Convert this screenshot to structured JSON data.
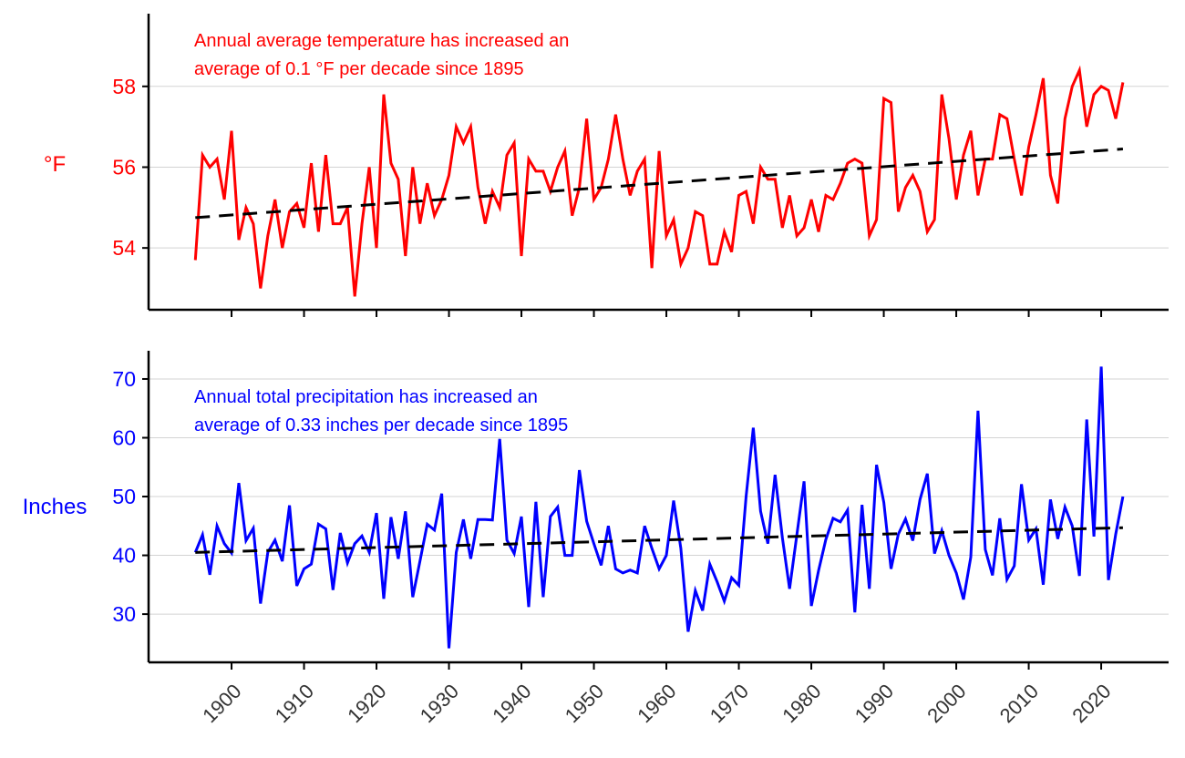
{
  "chart_data": [
    {
      "type": "line",
      "ylabel": "°F",
      "annotation": [
        "Annual average temperature has increased an",
        "average of 0.1 °F per decade since 1895"
      ],
      "color": "#ff0000",
      "trend_color": "#000000",
      "grid": true,
      "ylim": [
        52.47,
        59.8
      ],
      "yticks": [
        54,
        56,
        58
      ],
      "x_start": 1895,
      "values": [
        53.7,
        56.3,
        56.0,
        56.2,
        55.2,
        56.9,
        54.2,
        55.0,
        54.6,
        53.0,
        54.3,
        55.2,
        54.0,
        54.9,
        55.1,
        54.5,
        56.1,
        54.4,
        56.3,
        54.6,
        54.6,
        55.0,
        52.8,
        54.6,
        56.0,
        54.0,
        57.8,
        56.1,
        55.7,
        53.8,
        56.0,
        54.6,
        55.6,
        54.8,
        55.2,
        55.8,
        57.0,
        56.6,
        57.0,
        55.5,
        54.6,
        55.4,
        55.0,
        56.3,
        56.6,
        53.8,
        56.2,
        55.9,
        55.9,
        55.4,
        56.0,
        56.4,
        54.8,
        55.5,
        57.2,
        55.2,
        55.5,
        56.2,
        57.3,
        56.2,
        55.3,
        55.9,
        56.2,
        53.5,
        56.4,
        54.3,
        54.7,
        53.6,
        54.0,
        54.9,
        54.8,
        53.6,
        53.6,
        54.4,
        53.9,
        55.3,
        55.4,
        54.6,
        56.0,
        55.7,
        55.7,
        54.5,
        55.3,
        54.3,
        54.5,
        55.2,
        54.4,
        55.3,
        55.2,
        55.6,
        56.1,
        56.2,
        56.1,
        54.3,
        54.7,
        57.7,
        57.6,
        54.9,
        55.5,
        55.8,
        55.4,
        54.4,
        54.7,
        57.8,
        56.7,
        55.2,
        56.3,
        56.9,
        55.3,
        56.2,
        56.2,
        57.3,
        57.2,
        56.2,
        55.3,
        56.5,
        57.3,
        58.2,
        55.8,
        55.1,
        57.2,
        58.0,
        58.4,
        57.0,
        57.8,
        58.0,
        57.9,
        57.2,
        58.1
      ],
      "trend": {
        "start": [
          1895,
          54.75
        ],
        "end": [
          2023,
          56.45
        ]
      }
    },
    {
      "type": "line",
      "ylabel": "Inches",
      "annotation": [
        "Annual total precipitation has increased an",
        "average of 0.33 inches per decade since 1895"
      ],
      "color": "#0000ff",
      "trend_color": "#000000",
      "grid": true,
      "ylim": [
        21.8,
        74.8
      ],
      "yticks": [
        30,
        40,
        50,
        60,
        70
      ],
      "x_start": 1895,
      "values": [
        40.5,
        43.5,
        36.7,
        45.0,
        42.0,
        40.4,
        52.3,
        42.5,
        44.6,
        31.8,
        40.5,
        42.6,
        39.0,
        48.5,
        34.8,
        37.7,
        38.5,
        45.3,
        44.5,
        34.1,
        43.8,
        38.7,
        42.0,
        43.3,
        40.5,
        47.2,
        32.6,
        46.5,
        39.4,
        47.5,
        32.9,
        39.0,
        45.3,
        44.3,
        50.5,
        24.2,
        40.5,
        46.1,
        39.4,
        46.1,
        46.1,
        46.0,
        59.8,
        42.6,
        40.3,
        46.6,
        31.2,
        49.1,
        32.9,
        46.6,
        48.2,
        40.0,
        40.0,
        54.5,
        45.8,
        42.0,
        38.3,
        45.0,
        37.7,
        37.0,
        37.5,
        37.0,
        45.0,
        41.2,
        37.7,
        40.0,
        49.3,
        41.2,
        27.0,
        34.0,
        30.6,
        38.5,
        35.5,
        32.2,
        36.2,
        34.9,
        50.0,
        61.7,
        47.5,
        42.0,
        53.7,
        43.0,
        34.3,
        43.5,
        52.6,
        31.4,
        37.4,
        42.7,
        46.3,
        45.7,
        47.7,
        30.3,
        48.6,
        34.3,
        55.4,
        49.0,
        37.7,
        43.6,
        46.2,
        42.5,
        49.5,
        53.9,
        40.3,
        44.2,
        40.0,
        37.0,
        32.5,
        39.7,
        64.6,
        41.0,
        36.6,
        46.3,
        35.9,
        38.2,
        52.1,
        42.6,
        44.5,
        35.0,
        49.5,
        42.8,
        48.2,
        45.0,
        36.5,
        63.1,
        43.2,
        72.1,
        35.8,
        43.6,
        50.0
      ],
      "trend": {
        "start": [
          1895,
          40.5
        ],
        "end": [
          2023,
          44.7
        ]
      }
    }
  ],
  "x_axis": {
    "xlim": [
      1888.55,
      2029.3
    ],
    "ticks": [
      1900,
      1910,
      1920,
      1930,
      1940,
      1950,
      1960,
      1970,
      1980,
      1990,
      2000,
      2010,
      2020
    ],
    "tick_labels": [
      "1900",
      "1910",
      "1920",
      "1930",
      "1940",
      "1950",
      "1960",
      "1970",
      "1980",
      "1990",
      "2000",
      "2010",
      "2020"
    ]
  }
}
